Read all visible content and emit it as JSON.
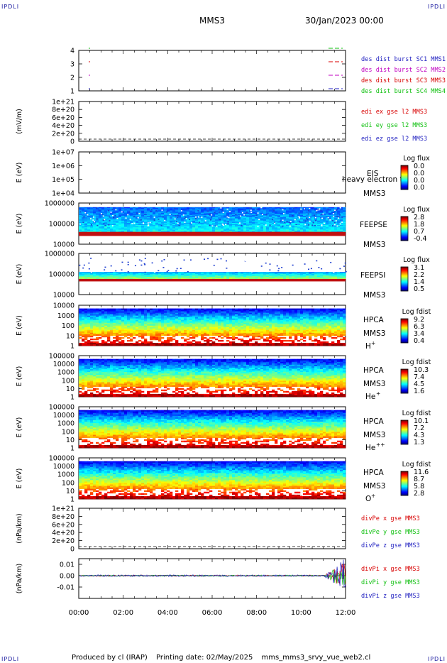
{
  "header": {
    "corner_tl": "IPDLI",
    "corner_tr": "IPDLI",
    "corner_bl": "IPDLI",
    "corner_br": "IPDLI",
    "spacecraft": "MMS3",
    "date": "30/Jan/2023 00:00"
  },
  "footer": {
    "produced_by": "Produced by cl (IRAP)",
    "printing_date": "Printing date: 02/May/2025",
    "script_name": "mms_mms3_srvy_vue_web2.cl"
  },
  "colors": {
    "mms1": "#1f1fc0",
    "mms2": "#d80000",
    "mms3": "#c000c0",
    "mms4": "#10c010",
    "x_comp": "#d80000",
    "y_comp": "#10c010",
    "z_comp": "#1f1fc0"
  },
  "chart_data": [
    {
      "type": "line",
      "panel": "burst-availability",
      "yticks": [
        "4",
        "3",
        "2",
        "1"
      ],
      "series": [
        {
          "name": "des dist burst SC1 MMS1",
          "color": "#1f1fc0",
          "level": 1
        },
        {
          "name": "des dist burst SC2 MMS2",
          "color": "#c000c0",
          "level": 2
        },
        {
          "name": "des dist burst SC3 MMS3",
          "color": "#d80000",
          "level": 3
        },
        {
          "name": "des dist burst SC4 MMS4",
          "color": "#10c010",
          "level": 4
        }
      ]
    },
    {
      "type": "line",
      "panel": "edi-electric-field",
      "ylabel": "(mV/m)",
      "yticks": [
        "1e+21",
        "8e+20",
        "6e+20",
        "4e+20",
        "2e+20",
        "0"
      ],
      "series": [
        {
          "name": "edi ex gse l2 MMS3",
          "color": "#d80000"
        },
        {
          "name": "edi ey gse l2 MMS3",
          "color": "#10c010"
        },
        {
          "name": "edi ez gse l2 MMS3",
          "color": "#1f1fc0"
        }
      ]
    },
    {
      "type": "heatmap",
      "panel": "eis",
      "ylabel": "E (eV)",
      "yticks": [
        "1e+07",
        "1e+06",
        "1e+05",
        "1e+04"
      ],
      "instrument": "EIS",
      "spacecraft": "MMS3",
      "overlay_text": "heavy electron to",
      "colorbar": {
        "label": "Log flux",
        "ticks": [
          "0.0",
          "0.0",
          "0.0",
          "0.0"
        ]
      }
    },
    {
      "type": "heatmap",
      "panel": "feepse",
      "ylabel": "E (eV)",
      "yticks": [
        "1000000",
        "100000",
        "10000"
      ],
      "instrument": "FEEPSE",
      "spacecraft": "MMS3",
      "colorbar": {
        "label": "Log flux",
        "ticks": [
          "2.8",
          "1.8",
          "0.7",
          "-0.4"
        ]
      }
    },
    {
      "type": "heatmap",
      "panel": "feepsi",
      "ylabel": "E (eV)",
      "yticks": [
        "1000000",
        "100000",
        "10000"
      ],
      "instrument": "FEEPSI",
      "spacecraft": "MMS3",
      "colorbar": {
        "label": "Log flux",
        "ticks": [
          "3.1",
          "2.2",
          "1.4",
          "0.5"
        ]
      }
    },
    {
      "type": "heatmap",
      "panel": "hpca-h",
      "ylabel": "E (eV)",
      "yticks": [
        "10000",
        "1000",
        "100",
        "10",
        "1"
      ],
      "instrument": "HPCA",
      "spacecraft": "MMS3",
      "species": "H",
      "charge": "+",
      "colorbar": {
        "label": "Log fdist",
        "ticks": [
          "9.2",
          "6.3",
          "3.4",
          "0.4"
        ]
      }
    },
    {
      "type": "heatmap",
      "panel": "hpca-he1",
      "ylabel": "E (eV)",
      "yticks": [
        "100000",
        "10000",
        "1000",
        "100",
        "10",
        "1"
      ],
      "instrument": "HPCA",
      "spacecraft": "MMS3",
      "species": "He",
      "charge": "+",
      "colorbar": {
        "label": "Log fdist",
        "ticks": [
          "10.3",
          "7.4",
          "4.5",
          "1.6"
        ]
      }
    },
    {
      "type": "heatmap",
      "panel": "hpca-he2",
      "ylabel": "E (eV)",
      "yticks": [
        "100000",
        "10000",
        "1000",
        "100",
        "10",
        "1"
      ],
      "instrument": "HPCA",
      "spacecraft": "MMS3",
      "species": "He",
      "charge": "++",
      "colorbar": {
        "label": "Log fdist",
        "ticks": [
          "10.1",
          "7.2",
          "4.3",
          "1.3"
        ]
      }
    },
    {
      "type": "heatmap",
      "panel": "hpca-o",
      "ylabel": "E (eV)",
      "yticks": [
        "100000",
        "10000",
        "1000",
        "100",
        "10",
        "1"
      ],
      "instrument": "HPCA",
      "spacecraft": "MMS3",
      "species": "O",
      "charge": "+",
      "colorbar": {
        "label": "Log fdist",
        "ticks": [
          "11.6",
          "8.7",
          "5.8",
          "2.8"
        ]
      }
    },
    {
      "type": "line",
      "panel": "div-pe",
      "ylabel": "(nPa/km)",
      "yticks": [
        "1e+21",
        "8e+20",
        "6e+20",
        "4e+20",
        "2e+20",
        "0"
      ],
      "series": [
        {
          "name": "divPe x gse MMS3",
          "color": "#d80000"
        },
        {
          "name": "divPe y gse MMS3",
          "color": "#10c010"
        },
        {
          "name": "divPe z gse MMS3",
          "color": "#1f1fc0"
        }
      ]
    },
    {
      "type": "line",
      "panel": "div-pi",
      "ylabel": "(nPa/km)",
      "yticks": [
        "0.01",
        "0.00",
        "-0.01"
      ],
      "ylim": [
        -0.02,
        0.015
      ],
      "series": [
        {
          "name": "divPi x gse MMS3",
          "color": "#d80000"
        },
        {
          "name": "divPi y gse MMS3",
          "color": "#10c010"
        },
        {
          "name": "divPi z gse MMS3",
          "color": "#1f1fc0"
        }
      ]
    }
  ],
  "xaxis": {
    "ticks": [
      "00:00",
      "02:00",
      "04:00",
      "06:00",
      "08:00",
      "10:00",
      "12:00"
    ]
  }
}
